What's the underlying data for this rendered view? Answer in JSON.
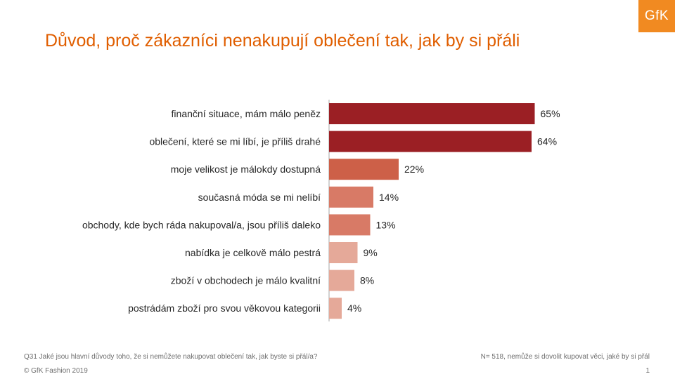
{
  "brand": {
    "logo_text": "GfK",
    "color": "#f18a21"
  },
  "title": "Důvod, proč zákazníci nenakupují oblečení tak, jak by si přáli",
  "chart_data": {
    "type": "bar",
    "orientation": "horizontal",
    "categories": [
      "finanční situace, mám málo peněz",
      "oblečení, které se mi líbí, je příliš drahé",
      "moje velikost je málokdy dostupná",
      "současná móda se mi nelíbí",
      "obchody, kde bych ráda nakupoval/a, jsou příliš daleko",
      "nabídka je celkově málo pestrá",
      "zboží v obchodech je málo kvalitní",
      "postrádám zboží pro svou věkovou kategorii"
    ],
    "values": [
      65,
      64,
      22,
      14,
      13,
      9,
      8,
      4
    ],
    "labels": [
      "65%",
      "64%",
      "22%",
      "14%",
      "13%",
      "9%",
      "8%",
      "4%"
    ],
    "colors": [
      "#9b1f24",
      "#9b1f24",
      "#cd6048",
      "#d87a66",
      "#d87a66",
      "#e5a999",
      "#e5a999",
      "#e5a999"
    ],
    "title": "Důvod, proč zákazníci nenakupují oblečení tak, jak by si přáli",
    "xlim": [
      0,
      70
    ],
    "grid": false,
    "legend": "none"
  },
  "footer": {
    "question": "Q31 Jaké jsou hlavní důvody toho, že si nemůžete nakupovat oblečení tak, jak byste si přál/a?",
    "copyright": "© GfK Fashion 2019",
    "base": "N= 518, nemůže si dovolit kupovat věci, jaké by si přál",
    "page_number": "1"
  }
}
